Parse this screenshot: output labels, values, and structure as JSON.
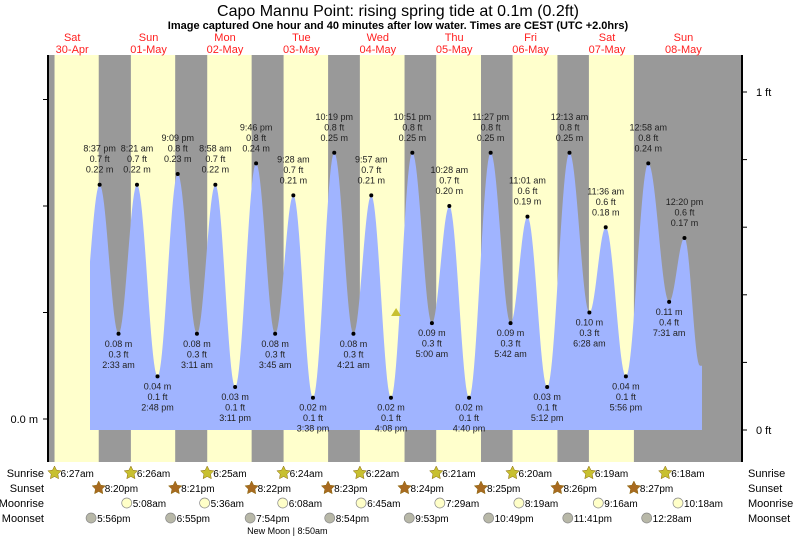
{
  "title": "Capo Mannu Point: rising  spring tide at 0.1m (0.2ft)",
  "subtitle": "Image captured One hour and 40 minutes after low water. Times are CEST (UTC +2.0hrs)",
  "colors": {
    "day": "#ffffcc",
    "night": "#999999",
    "water": "#a0b4ff",
    "day_label": "#ff2020",
    "sunrise": "#c8c030",
    "sunset": "#a86a20",
    "moonrise": "#ffffc8",
    "moonset": "#b8b8a8",
    "marker": "#c8c030"
  },
  "chart_data": {
    "type": "area",
    "title": "Capo Mannu Point tide chart",
    "x_unit": "days from Sat 30-Apr 00:00 (CEST)",
    "y_unit": "m",
    "ylim_m": [
      0,
      0.3
    ],
    "left_axis": {
      "labels": [
        {
          "value": 0.0,
          "text": "0.0 m"
        }
      ]
    },
    "right_axis": {
      "labels": [
        {
          "value_ft": 1,
          "text": "1 ft"
        },
        {
          "value_ft": 0,
          "text": "0 ft"
        }
      ]
    },
    "days": [
      {
        "dow": "Sat",
        "date": "30-Apr"
      },
      {
        "dow": "Sun",
        "date": "01-May"
      },
      {
        "dow": "Mon",
        "date": "02-May"
      },
      {
        "dow": "Tue",
        "date": "03-May"
      },
      {
        "dow": "Wed",
        "date": "04-May"
      },
      {
        "dow": "Thu",
        "date": "05-May"
      },
      {
        "dow": "Fri",
        "date": "06-May"
      },
      {
        "dow": "Sat",
        "date": "07-May"
      },
      {
        "dow": "Sun",
        "date": "08-May"
      }
    ],
    "tides": [
      {
        "day": 0,
        "time": "8:37 pm",
        "type": "high",
        "m": 0.22,
        "ft": "0.7 ft",
        "m_label": "0.22 m"
      },
      {
        "day": 1,
        "time": "2:33 am",
        "type": "low",
        "m": 0.08,
        "ft": "0.3 ft",
        "m_label": "0.08 m"
      },
      {
        "day": 1,
        "time": "8:21 am",
        "type": "high",
        "m": 0.22,
        "ft": "0.7 ft",
        "m_label": "0.22 m"
      },
      {
        "day": 1,
        "time": "2:48 pm",
        "type": "low",
        "m": 0.04,
        "ft": "0.1 ft",
        "m_label": "0.04 m"
      },
      {
        "day": 1,
        "time": "9:09 pm",
        "type": "high",
        "m": 0.23,
        "ft": "0.8 ft",
        "m_label": "0.23 m"
      },
      {
        "day": 2,
        "time": "3:11 am",
        "type": "low",
        "m": 0.08,
        "ft": "0.3 ft",
        "m_label": "0.08 m"
      },
      {
        "day": 2,
        "time": "8:58 am",
        "type": "high",
        "m": 0.22,
        "ft": "0.7 ft",
        "m_label": "0.22 m"
      },
      {
        "day": 2,
        "time": "3:11 pm",
        "type": "low",
        "m": 0.03,
        "ft": "0.1 ft",
        "m_label": "0.03 m"
      },
      {
        "day": 2,
        "time": "9:46 pm",
        "type": "high",
        "m": 0.24,
        "ft": "0.8 ft",
        "m_label": "0.24 m"
      },
      {
        "day": 3,
        "time": "3:45 am",
        "type": "low",
        "m": 0.08,
        "ft": "0.3 ft",
        "m_label": "0.08 m"
      },
      {
        "day": 3,
        "time": "9:28 am",
        "type": "high",
        "m": 0.21,
        "ft": "0.7 ft",
        "m_label": "0.21 m"
      },
      {
        "day": 3,
        "time": "3:38 pm",
        "type": "low",
        "m": 0.02,
        "ft": "0.1 ft",
        "m_label": "0.02 m"
      },
      {
        "day": 3,
        "time": "10:19 pm",
        "type": "high",
        "m": 0.25,
        "ft": "0.8 ft",
        "m_label": "0.25 m"
      },
      {
        "day": 4,
        "time": "4:21 am",
        "type": "low",
        "m": 0.08,
        "ft": "0.3 ft",
        "m_label": "0.08 m"
      },
      {
        "day": 4,
        "time": "9:57 am",
        "type": "high",
        "m": 0.21,
        "ft": "0.7 ft",
        "m_label": "0.21 m"
      },
      {
        "day": 4,
        "time": "4:08 pm",
        "type": "low",
        "m": 0.02,
        "ft": "0.1 ft",
        "m_label": "0.02 m"
      },
      {
        "day": 4,
        "time": "10:51 pm",
        "type": "high",
        "m": 0.25,
        "ft": "0.8 ft",
        "m_label": "0.25 m"
      },
      {
        "day": 5,
        "time": "5:00 am",
        "type": "low",
        "m": 0.09,
        "ft": "0.3 ft",
        "m_label": "0.09 m"
      },
      {
        "day": 5,
        "time": "10:28 am",
        "type": "high",
        "m": 0.2,
        "ft": "0.7 ft",
        "m_label": "0.20 m"
      },
      {
        "day": 5,
        "time": "4:40 pm",
        "type": "low",
        "m": 0.02,
        "ft": "0.1 ft",
        "m_label": "0.02 m"
      },
      {
        "day": 5,
        "time": "11:27 pm",
        "type": "high",
        "m": 0.25,
        "ft": "0.8 ft",
        "m_label": "0.25 m"
      },
      {
        "day": 6,
        "time": "5:42 am",
        "type": "low",
        "m": 0.09,
        "ft": "0.3 ft",
        "m_label": "0.09 m"
      },
      {
        "day": 6,
        "time": "11:01 am",
        "type": "high",
        "m": 0.19,
        "ft": "0.6 ft",
        "m_label": "0.19 m"
      },
      {
        "day": 6,
        "time": "5:12 pm",
        "type": "low",
        "m": 0.03,
        "ft": "0.1 ft",
        "m_label": "0.03 m"
      },
      {
        "day": 7,
        "time": "12:13 am",
        "type": "high",
        "m": 0.25,
        "ft": "0.8 ft",
        "m_label": "0.25 m"
      },
      {
        "day": 7,
        "time": "6:28 am",
        "type": "low",
        "m": 0.1,
        "ft": "0.3 ft",
        "m_label": "0.10 m"
      },
      {
        "day": 7,
        "time": "11:36 am",
        "type": "high",
        "m": 0.18,
        "ft": "0.6 ft",
        "m_label": "0.18 m"
      },
      {
        "day": 7,
        "time": "5:56 pm",
        "type": "low",
        "m": 0.04,
        "ft": "0.1 ft",
        "m_label": "0.04 m"
      },
      {
        "day": 8,
        "time": "12:58 am",
        "type": "high",
        "m": 0.24,
        "ft": "0.8 ft",
        "m_label": "0.24 m"
      },
      {
        "day": 8,
        "time": "7:31 am",
        "type": "low",
        "m": 0.11,
        "ft": "0.4 ft",
        "m_label": "0.11 m"
      },
      {
        "day": 8,
        "time": "12:20 pm",
        "type": "high",
        "m": 0.17,
        "ft": "0.6 ft",
        "m_label": "0.17 m"
      }
    ],
    "now_marker": {
      "day": 4,
      "time": "5:45 pm",
      "m": 0.1
    }
  },
  "almanac": {
    "row_labels": {
      "sunrise": "Sunrise",
      "sunset": "Sunset",
      "moonrise": "Moonrise",
      "moonset": "Moonset"
    },
    "sunrise": [
      {
        "day": 0,
        "time": "6:27am"
      },
      {
        "day": 1,
        "time": "6:26am"
      },
      {
        "day": 2,
        "time": "6:25am"
      },
      {
        "day": 3,
        "time": "6:24am"
      },
      {
        "day": 4,
        "time": "6:22am"
      },
      {
        "day": 5,
        "time": "6:21am"
      },
      {
        "day": 6,
        "time": "6:20am"
      },
      {
        "day": 7,
        "time": "6:19am"
      },
      {
        "day": 8,
        "time": "6:18am"
      }
    ],
    "sunset": [
      {
        "day": 0,
        "time": "8:20pm"
      },
      {
        "day": 1,
        "time": "8:21pm"
      },
      {
        "day": 2,
        "time": "8:22pm"
      },
      {
        "day": 3,
        "time": "8:23pm"
      },
      {
        "day": 4,
        "time": "8:24pm"
      },
      {
        "day": 5,
        "time": "8:25pm"
      },
      {
        "day": 6,
        "time": "8:26pm"
      },
      {
        "day": 7,
        "time": "8:27pm"
      }
    ],
    "moonrise": [
      {
        "day": 1,
        "time": "5:08am"
      },
      {
        "day": 2,
        "time": "5:36am"
      },
      {
        "day": 3,
        "time": "6:08am"
      },
      {
        "day": 4,
        "time": "6:45am"
      },
      {
        "day": 5,
        "time": "7:29am"
      },
      {
        "day": 6,
        "time": "8:19am"
      },
      {
        "day": 7,
        "time": "9:16am"
      },
      {
        "day": 8,
        "time": "10:18am"
      }
    ],
    "moonset": [
      {
        "day": 0,
        "time": "5:56pm"
      },
      {
        "day": 1,
        "time": "6:55pm"
      },
      {
        "day": 2,
        "time": "7:54pm"
      },
      {
        "day": 3,
        "time": "8:54pm"
      },
      {
        "day": 4,
        "time": "9:53pm"
      },
      {
        "day": 5,
        "time": "10:49pm"
      },
      {
        "day": 6,
        "time": "11:41pm"
      },
      {
        "day": 8,
        "time": "12:28am"
      }
    ],
    "moon_phase": {
      "day": 3,
      "time": "8:50am",
      "label": "New Moon | 8:50am"
    }
  }
}
